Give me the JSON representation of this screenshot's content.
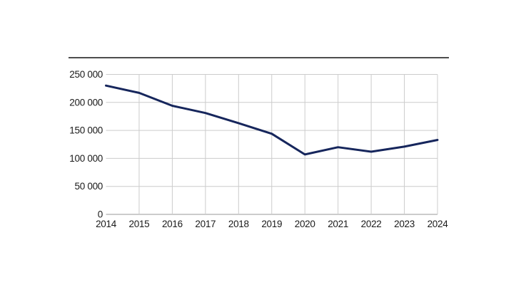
{
  "chart_data": {
    "type": "line",
    "title": "",
    "xlabel": "",
    "ylabel": "",
    "categories": [
      "2014",
      "2015",
      "2016",
      "2017",
      "2018",
      "2019",
      "2020",
      "2021",
      "2022",
      "2023",
      "2024"
    ],
    "series": [
      {
        "name": "series-1",
        "values": [
          230000,
          217000,
          194000,
          181000,
          163000,
          144000,
          107000,
          120000,
          112000,
          121000,
          133000
        ]
      }
    ],
    "ylim": [
      0,
      250000
    ],
    "yticks": [
      {
        "value": 0,
        "label": "0"
      },
      {
        "value": 50000,
        "label": "50 000"
      },
      {
        "value": 100000,
        "label": "100 000"
      },
      {
        "value": 150000,
        "label": "150 000"
      },
      {
        "value": 200000,
        "label": "200 000"
      },
      {
        "value": 250000,
        "label": "250 000"
      }
    ],
    "grid": true,
    "legend_position": "none"
  },
  "colors": {
    "line": "#16265c",
    "grid": "#cccccc",
    "axis": "#999999",
    "divider": "#4d4d4d",
    "text": "#1a1a1a",
    "background": "#ffffff"
  }
}
